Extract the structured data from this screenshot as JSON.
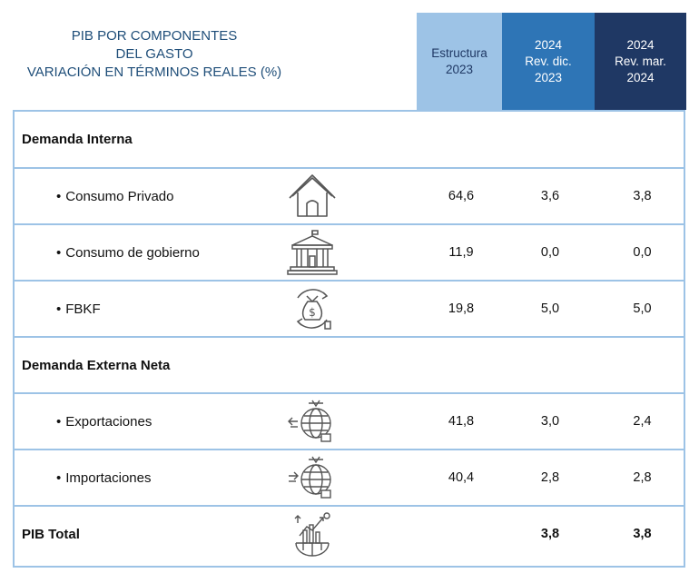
{
  "title": {
    "line1": "PIB POR COMPONENTES",
    "line2": "DEL GASTO",
    "line3": "VARIACIÓN EN TÉRMINOS REALES (%)"
  },
  "headers": {
    "col1": [
      "Estructura",
      "2023"
    ],
    "col2": [
      "2024",
      "Rev. dic.",
      "2023"
    ],
    "col3": [
      "2024",
      "Rev. mar.",
      "2024"
    ]
  },
  "colors": {
    "col1_bg": "#9dc3e6",
    "col2_bg": "#2e75b6",
    "col3_bg": "#1f3864",
    "title_text": "#1f4e79",
    "border": "#9dc3e6"
  },
  "rows": [
    {
      "label": "Demanda Interna",
      "type": "section"
    },
    {
      "label": "Consumo Privado",
      "type": "item",
      "icon": "house-icon",
      "estructura": "64,6",
      "dic": "3,6",
      "mar": "3,8"
    },
    {
      "label": "Consumo de gobierno",
      "type": "item",
      "icon": "government-building-icon",
      "estructura": "11,9",
      "dic": "0,0",
      "mar": "0,0"
    },
    {
      "label": "FBKF",
      "type": "item",
      "icon": "money-bag-investment-icon",
      "estructura": "19,8",
      "dic": "5,0",
      "mar": "5,0"
    },
    {
      "label": "Demanda Externa Neta",
      "type": "section"
    },
    {
      "label": "Exportaciones",
      "type": "item",
      "icon": "globe-export-icon",
      "estructura": "41,8",
      "dic": "3,0",
      "mar": "2,4"
    },
    {
      "label": "Importaciones",
      "type": "item",
      "icon": "globe-import-icon",
      "estructura": "40,4",
      "dic": "2,8",
      "mar": "2,8"
    },
    {
      "label": "PIB Total",
      "type": "total",
      "icon": "globe-growth-icon",
      "estructura": "",
      "dic": "3,8",
      "mar": "3,8"
    }
  ]
}
